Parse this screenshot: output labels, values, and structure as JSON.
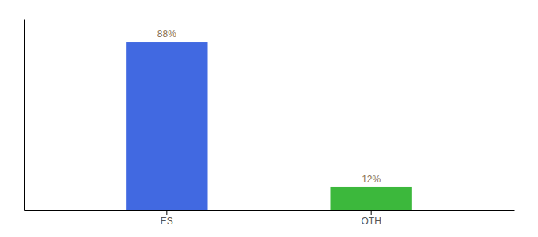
{
  "chart_data": {
    "type": "bar",
    "categories": [
      "ES",
      "OTH"
    ],
    "values": [
      88,
      12
    ],
    "value_labels": [
      "88%",
      "12%"
    ],
    "colors": [
      "#4169e1",
      "#3cb83c"
    ],
    "ylim": [
      0,
      100
    ],
    "data_labels": true,
    "tick_labels": "x",
    "grid": false
  }
}
